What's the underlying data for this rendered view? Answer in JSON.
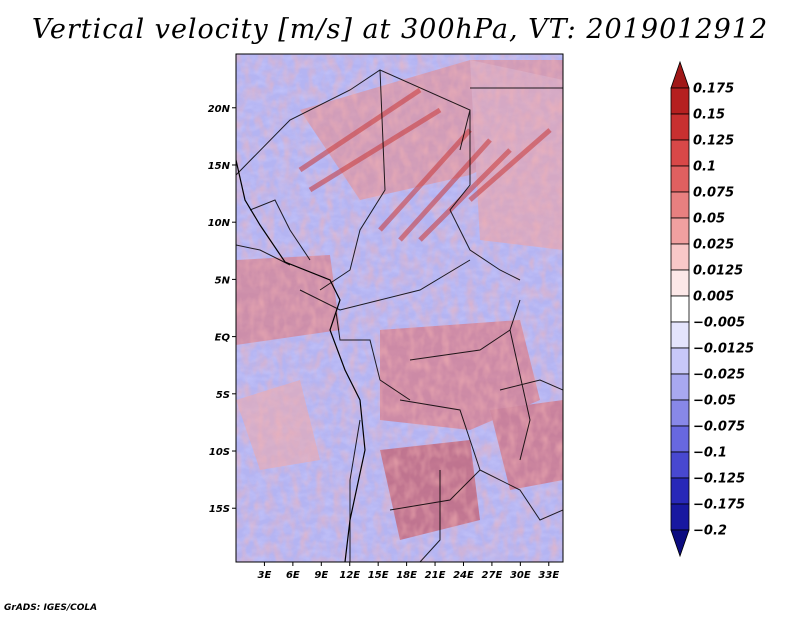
{
  "title": "Vertical velocity [m/s] at 300hPa, VT: 2019012912",
  "footer": "GrADS: IGES/COLA",
  "lat_labels": [
    "20N",
    "15N",
    "10N",
    "5N",
    "EQ",
    "5S",
    "10S",
    "15S"
  ],
  "lat_values": [
    20,
    15,
    10,
    5,
    0,
    -5,
    -10,
    -15
  ],
  "lon_labels": [
    "3E",
    "6E",
    "9E",
    "12E",
    "15E",
    "18E",
    "21E",
    "24E",
    "27E",
    "30E",
    "33E"
  ],
  "lon_values": [
    3,
    6,
    9,
    12,
    15,
    18,
    21,
    24,
    27,
    30,
    33
  ],
  "map_extent": {
    "lon_min": 0,
    "lon_max": 34.5,
    "lat_min": -19.7,
    "lat_max": 24.7
  },
  "colorbar": {
    "labels": [
      "0.175",
      "0.15",
      "0.125",
      "0.1",
      "0.075",
      "0.05",
      "0.025",
      "0.0125",
      "0.005",
      "−0.005",
      "−0.0125",
      "−0.025",
      "−0.05",
      "−0.075",
      "−0.1",
      "−0.125",
      "−0.175",
      "−0.2"
    ],
    "colors": [
      "#a01818",
      "#b52020",
      "#c83030",
      "#d84848",
      "#e06060",
      "#e88080",
      "#f0a0a0",
      "#f8c8c8",
      "#fce8e8",
      "#ffffff",
      "#e4e4fc",
      "#c8c8f8",
      "#a8a8f0",
      "#8888e8",
      "#6868e0",
      "#4848d0",
      "#2828b8",
      "#1818a0",
      "#0c0c80"
    ]
  },
  "colors": {
    "positive": "#d84848",
    "negative": "#6868e0",
    "background": "#a8a8f0"
  }
}
